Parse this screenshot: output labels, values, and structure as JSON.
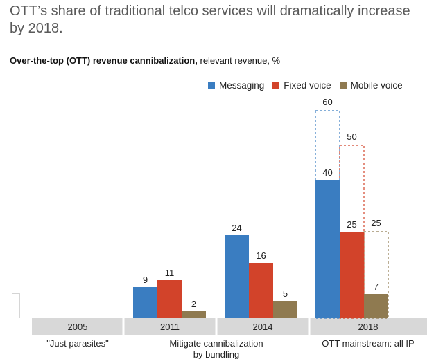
{
  "headline": "OTT’s share of traditional telco services will dramatically increase by 2018.",
  "subtitle": {
    "bold": "Over-the-top (OTT) revenue cannibalization,",
    "normal": " relevant revenue, %"
  },
  "colors": {
    "messaging": "#3a7dc1",
    "fixed_voice": "#d2432a",
    "mobile_voice": "#8f7a50",
    "axis_band": "#d8d8d8"
  },
  "chart_data": {
    "type": "bar",
    "title": "Over-the-top (OTT) revenue cannibalization, relevant revenue, %",
    "categories": [
      "2005",
      "2011",
      "2014",
      "2018"
    ],
    "series": [
      {
        "name": "Messaging",
        "key": "messaging",
        "values": [
          0,
          9,
          24,
          40
        ]
      },
      {
        "name": "Fixed voice",
        "key": "fixed_voice",
        "values": [
          0,
          11,
          16,
          25
        ]
      },
      {
        "name": "Mobile voice",
        "key": "mobile_voice",
        "values": [
          0,
          2,
          5,
          7
        ]
      }
    ],
    "value_labels": [
      [
        "",
        "9",
        "24",
        "40"
      ],
      [
        "",
        "11",
        "16",
        "25"
      ],
      [
        "",
        "2",
        "5",
        "7"
      ]
    ],
    "potential": {
      "category": "2018",
      "values": [
        60,
        50,
        25
      ],
      "labels": [
        "60",
        "50",
        "25"
      ]
    },
    "phases": [
      {
        "label_lines": [
          "\"Just parasites\""
        ]
      },
      {
        "label_lines": [
          "Mitigate cannibalization",
          "by bundling"
        ]
      },
      {
        "label_lines": [
          "OTT mainstream: all IP"
        ]
      }
    ],
    "legend": "top-right",
    "ylim": [
      0,
      60
    ],
    "grid": false
  }
}
